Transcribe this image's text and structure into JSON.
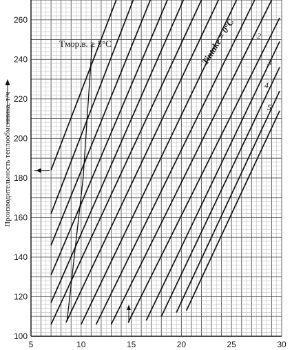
{
  "chart_data": {
    "type": "line",
    "title": "",
    "xlabel": "",
    "ylabel": "Производительность теплообменника, т/ч",
    "xlim": [
      5,
      30
    ],
    "ylim": [
      100,
      270
    ],
    "x_ticks": [
      "5",
      "10",
      "15",
      "20",
      "25",
      "30"
    ],
    "y_ticks": [
      "100",
      "120",
      "140",
      "160",
      "180",
      "200",
      "220",
      "240",
      "260"
    ],
    "grid": true,
    "annotations": {
      "sea_temp": "Tмор.в. ≥ 5°C",
      "intake_temp": "Tintake = 0°C"
    },
    "series": [
      {
        "name": "",
        "points": [
          [
            7.0,
            184
          ],
          [
            13.5,
            270
          ]
        ]
      },
      {
        "name": "",
        "points": [
          [
            7.0,
            162
          ],
          [
            15.2,
            270
          ]
        ]
      },
      {
        "name": "",
        "points": [
          [
            7.0,
            146
          ],
          [
            16.9,
            270
          ]
        ]
      },
      {
        "name": "",
        "points": [
          [
            7.0,
            131
          ],
          [
            18.6,
            270
          ]
        ]
      },
      {
        "name": "",
        "points": [
          [
            7.0,
            117
          ],
          [
            20.2,
            270
          ]
        ]
      },
      {
        "name": "",
        "points": [
          [
            7.0,
            106
          ],
          [
            22.0,
            270
          ]
        ]
      },
      {
        "name": "",
        "points": [
          [
            8.5,
            107
          ],
          [
            23.7,
            270
          ]
        ]
      },
      {
        "name": "",
        "points": [
          [
            10.0,
            106
          ],
          [
            25.5,
            270
          ]
        ]
      },
      {
        "name": "",
        "points": [
          [
            11.5,
            106
          ],
          [
            27.3,
            270
          ]
        ]
      },
      {
        "name": "",
        "points": [
          [
            13.0,
            106
          ],
          [
            29.0,
            270
          ]
        ]
      },
      {
        "name": "",
        "points": [
          [
            14.7,
            107
          ],
          [
            29.8,
            261
          ]
        ]
      },
      {
        "name": "",
        "points": [
          [
            16.5,
            108
          ],
          [
            29.8,
            249
          ]
        ]
      },
      {
        "name": "",
        "points": [
          [
            18.0,
            110
          ],
          [
            29.8,
            236
          ]
        ]
      },
      {
        "name": "",
        "points": [
          [
            19.5,
            112
          ],
          [
            29.8,
            224
          ]
        ]
      },
      {
        "name": "",
        "points": [
          [
            20.5,
            113
          ],
          [
            29.8,
            214
          ]
        ]
      }
    ],
    "curve_labels": [
      "2",
      "3",
      "4",
      "5"
    ],
    "marker_lines": [
      {
        "name": "sea-temp-boundary",
        "points": [
          [
            8.6,
            108
          ],
          [
            10.2,
            180
          ],
          [
            11.1,
            248
          ]
        ]
      }
    ]
  }
}
